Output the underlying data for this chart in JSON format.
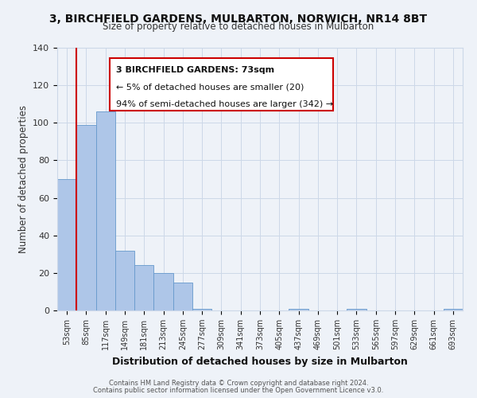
{
  "title": "3, BIRCHFIELD GARDENS, MULBARTON, NORWICH, NR14 8BT",
  "subtitle": "Size of property relative to detached houses in Mulbarton",
  "xlabel": "Distribution of detached houses by size in Mulbarton",
  "ylabel": "Number of detached properties",
  "bar_color": "#aec6e8",
  "bar_edge_color": "#6699cc",
  "background_color": "#eef2f8",
  "grid_color": "#ccd8e8",
  "annotation_box_color": "#ffffff",
  "annotation_border_color": "#cc0000",
  "vertical_line_color": "#cc0000",
  "categories": [
    "53sqm",
    "85sqm",
    "117sqm",
    "149sqm",
    "181sqm",
    "213sqm",
    "245sqm",
    "277sqm",
    "309sqm",
    "341sqm",
    "373sqm",
    "405sqm",
    "437sqm",
    "469sqm",
    "501sqm",
    "533sqm",
    "565sqm",
    "597sqm",
    "629sqm",
    "661sqm",
    "693sqm"
  ],
  "values": [
    70,
    99,
    106,
    32,
    24,
    20,
    15,
    1,
    0,
    0,
    0,
    0,
    1,
    0,
    0,
    1,
    0,
    0,
    0,
    0,
    1
  ],
  "ylim": [
    0,
    140
  ],
  "yticks": [
    0,
    20,
    40,
    60,
    80,
    100,
    120,
    140
  ],
  "annotation_title": "3 BIRCHFIELD GARDENS: 73sqm",
  "annotation_line1": "← 5% of detached houses are smaller (20)",
  "annotation_line2": "94% of semi-detached houses are larger (342) →",
  "footer_line1": "Contains HM Land Registry data © Crown copyright and database right 2024.",
  "footer_line2": "Contains public sector information licensed under the Open Government Licence v3.0."
}
